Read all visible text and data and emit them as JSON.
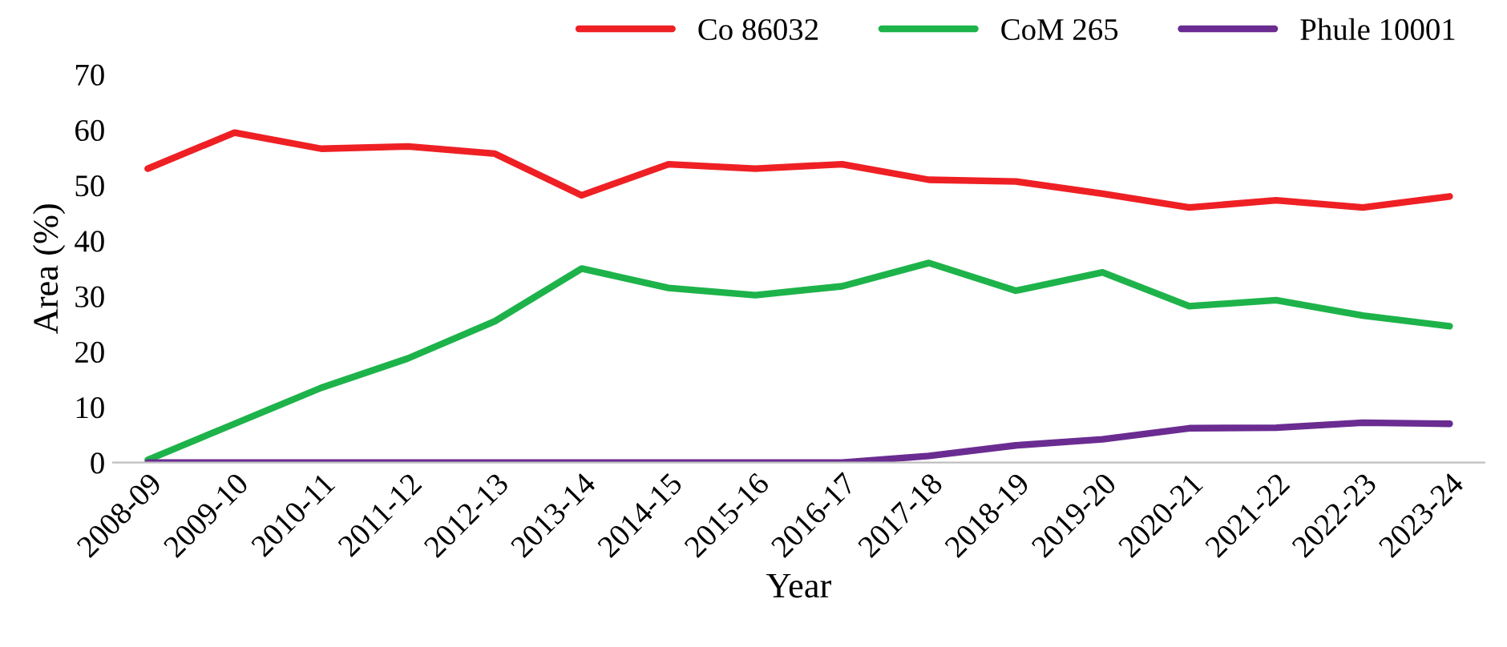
{
  "chart_data": {
    "type": "line",
    "xlabel": "Year",
    "ylabel": "Area (%)",
    "categories": [
      "2008-09",
      "2009-10",
      "2010-11",
      "2011-12",
      "2012-13",
      "2013-14",
      "2014-15",
      "2015-16",
      "2016-17",
      "2017-18",
      "2018-19",
      "2019-20",
      "2020-21",
      "2021-22",
      "2022-23",
      "2023-24"
    ],
    "series": [
      {
        "name": "Co 86032",
        "color": "#ee2024",
        "values": [
          53,
          59.5,
          56.6,
          57,
          55.7,
          48.2,
          53.8,
          53,
          53.8,
          51,
          50.7,
          48.5,
          46,
          47.3,
          46,
          48
        ]
      },
      {
        "name": "CoM 265",
        "color": "#1db34a",
        "values": [
          0.5,
          7,
          13.5,
          18.8,
          25.5,
          35,
          31.5,
          30.2,
          31.8,
          36,
          31,
          34.3,
          28.2,
          29.3,
          26.5,
          24.6
        ]
      },
      {
        "name": "Phule 10001",
        "color": "#6a2c91",
        "values": [
          0,
          0,
          0,
          0,
          0,
          0,
          0,
          0,
          0,
          1.2,
          3.1,
          4.2,
          6.2,
          6.3,
          7.2,
          7
        ]
      }
    ],
    "ylim": [
      0,
      70
    ],
    "yticks": [
      0,
      10,
      20,
      30,
      40,
      50,
      60,
      70
    ],
    "grid": false,
    "legend": "top right",
    "marker": "none",
    "line_style": "solid"
  }
}
